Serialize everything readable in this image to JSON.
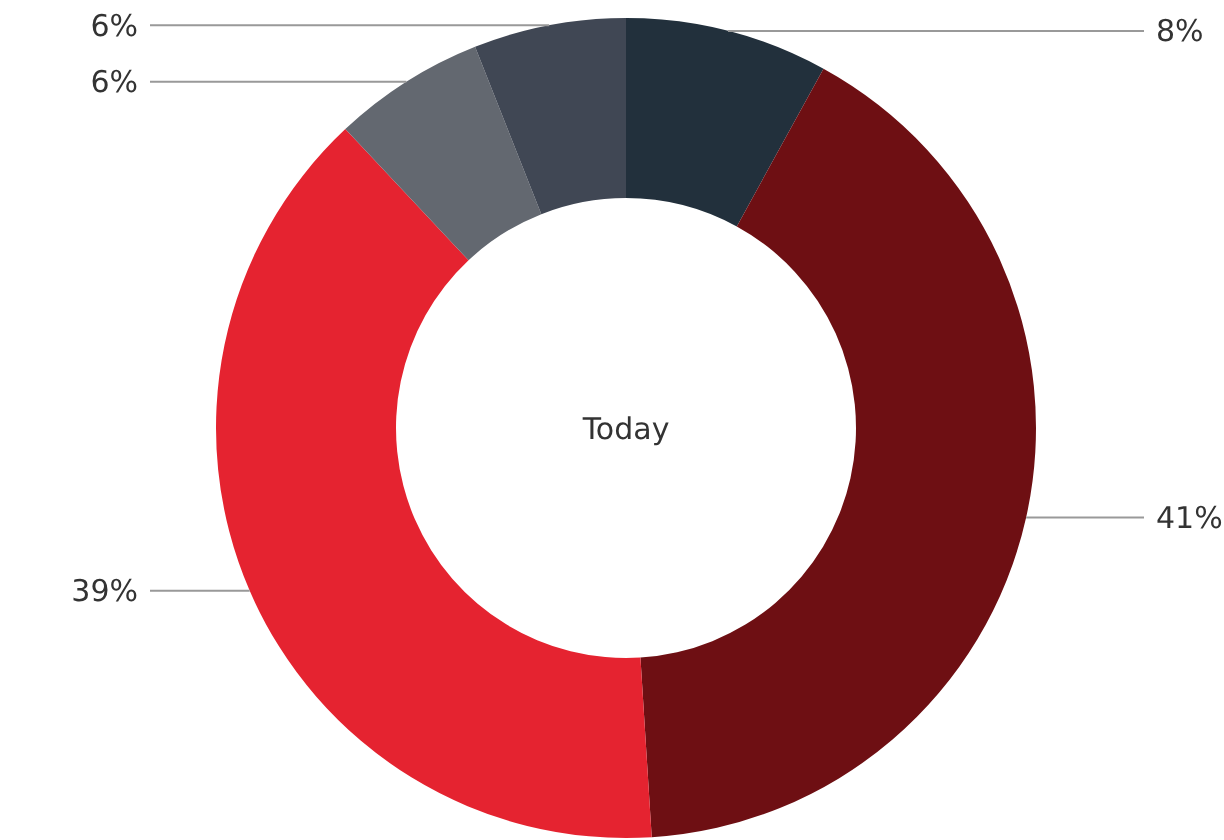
{
  "chart_data": {
    "type": "donut",
    "title": "Today",
    "categories": [
      null,
      null,
      null,
      null,
      null
    ],
    "values": [
      8,
      41,
      39,
      6,
      6
    ],
    "colors": [
      "#22303c",
      "#6e0f13",
      "#e52330",
      "#636870",
      "#404754"
    ],
    "value_labels": [
      "8%",
      "41%",
      "39%",
      "6%",
      "6%"
    ]
  }
}
